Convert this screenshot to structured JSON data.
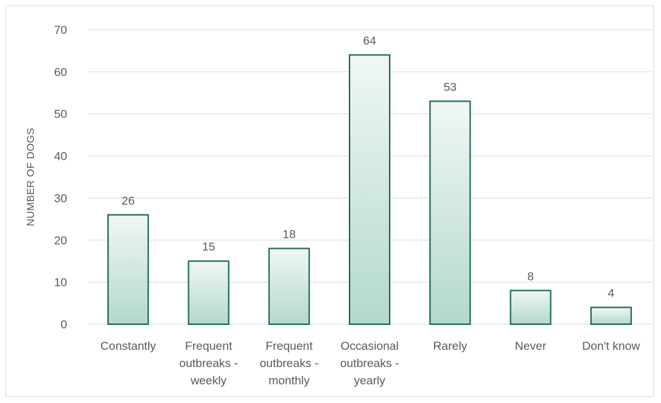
{
  "chart_data": {
    "type": "bar",
    "title": "",
    "xlabel": "",
    "ylabel": "NUMBER OF DOGS",
    "categories": [
      [
        "Constantly"
      ],
      [
        "Frequent",
        "outbreaks -",
        "weekly"
      ],
      [
        "Frequent",
        "outbreaks -",
        "monthly"
      ],
      [
        "Occasional",
        "outbreaks -",
        "yearly"
      ],
      [
        "Rarely"
      ],
      [
        "Never"
      ],
      [
        "Don't know"
      ]
    ],
    "values": [
      26,
      15,
      18,
      64,
      53,
      8,
      4
    ],
    "ylim": [
      0,
      70
    ],
    "yticks": [
      0,
      10,
      20,
      30,
      40,
      50,
      60,
      70
    ],
    "grid": true,
    "legend": "none",
    "colors": {
      "bar_fill_top": "#f0f7f4",
      "bar_fill_bottom": "#b3d9cb",
      "bar_stroke": "#1a6b4a",
      "gridline": "#d9d9d9",
      "text": "#595959"
    }
  }
}
